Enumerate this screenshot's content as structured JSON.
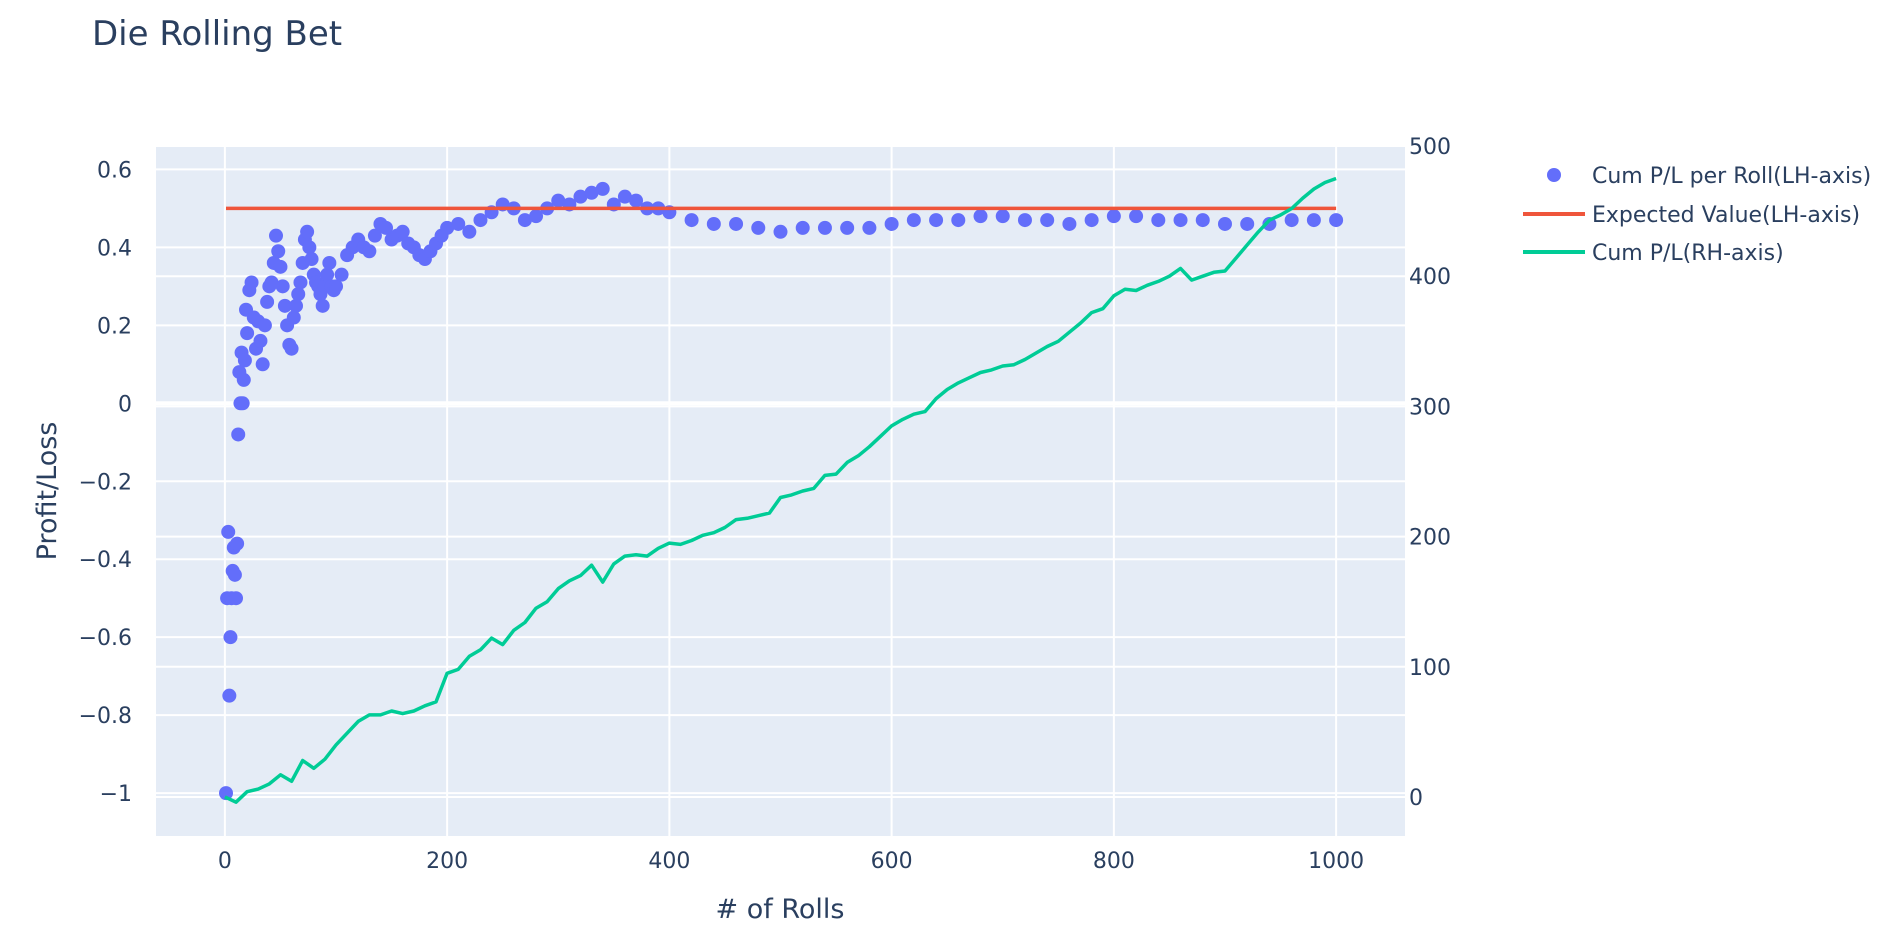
{
  "chart_data": {
    "type": "scatter",
    "title": "Die Rolling Bet",
    "xlabel": "# of Rolls",
    "ylabel": "Profit/Loss",
    "y2label": "",
    "xlim": [
      -62,
      1062
    ],
    "ylim": [
      -1.11,
      0.66
    ],
    "y2lim": [
      -30,
      500
    ],
    "x_ticks": [
      0,
      200,
      400,
      600,
      800,
      1000
    ],
    "x_tick_labels": [
      "0",
      "200",
      "400",
      "600",
      "800",
      "1000"
    ],
    "y_ticks": [
      0.6,
      0.4,
      0.2,
      0,
      -0.2,
      -0.4,
      -0.6,
      -0.8,
      -1
    ],
    "y_tick_labels": [
      "0.6",
      "0.4",
      "0.2",
      "0",
      "−0.2",
      "−0.4",
      "−0.6",
      "−0.8",
      "−1"
    ],
    "y2_ticks": [
      500,
      400,
      300,
      200,
      100,
      0
    ],
    "y2_tick_labels": [
      "500",
      "400",
      "300",
      "200",
      "100",
      "0"
    ],
    "grid": true,
    "legend_position": "top-right",
    "colors": {
      "plot_bg": "#e5ecf6",
      "text": "#2a3f5f",
      "markers": "#636efa",
      "expected": "#ef553b",
      "cumulative": "#00cc96"
    },
    "series": [
      {
        "name": "Cum P/L per Roll(LH-axis)",
        "kind": "markers",
        "axis": "left",
        "color": "#636efa",
        "x": [
          1,
          2,
          3,
          4,
          5,
          6,
          7,
          8,
          9,
          10,
          11,
          12,
          13,
          14,
          15,
          16,
          17,
          18,
          19,
          20,
          22,
          24,
          26,
          28,
          30,
          32,
          34,
          36,
          38,
          40,
          42,
          44,
          46,
          48,
          50,
          52,
          54,
          56,
          58,
          60,
          62,
          64,
          66,
          68,
          70,
          72,
          74,
          76,
          78,
          80,
          82,
          84,
          86,
          88,
          90,
          92,
          94,
          96,
          98,
          100,
          105,
          110,
          115,
          120,
          125,
          130,
          135,
          140,
          145,
          150,
          155,
          160,
          165,
          170,
          175,
          180,
          185,
          190,
          195,
          200,
          210,
          220,
          230,
          240,
          250,
          260,
          270,
          280,
          290,
          300,
          310,
          320,
          330,
          340,
          350,
          360,
          370,
          380,
          390,
          400,
          420,
          440,
          460,
          480,
          500,
          520,
          540,
          560,
          580,
          600,
          620,
          640,
          660,
          680,
          700,
          720,
          740,
          760,
          780,
          800,
          820,
          840,
          860,
          880,
          900,
          920,
          940,
          960,
          980,
          1000
        ],
        "y": [
          -1.0,
          -0.5,
          -0.33,
          -0.75,
          -0.6,
          -0.5,
          -0.43,
          -0.37,
          -0.44,
          -0.5,
          -0.36,
          -0.08,
          0.08,
          0.0,
          0.13,
          0.0,
          0.06,
          0.11,
          0.24,
          0.18,
          0.29,
          0.31,
          0.22,
          0.14,
          0.21,
          0.16,
          0.1,
          0.2,
          0.26,
          0.3,
          0.31,
          0.36,
          0.43,
          0.39,
          0.35,
          0.3,
          0.25,
          0.2,
          0.15,
          0.14,
          0.22,
          0.25,
          0.28,
          0.31,
          0.36,
          0.42,
          0.44,
          0.4,
          0.37,
          0.33,
          0.31,
          0.3,
          0.28,
          0.25,
          0.3,
          0.33,
          0.36,
          0.3,
          0.29,
          0.3,
          0.33,
          0.38,
          0.4,
          0.42,
          0.4,
          0.39,
          0.43,
          0.46,
          0.45,
          0.42,
          0.43,
          0.44,
          0.41,
          0.4,
          0.38,
          0.37,
          0.39,
          0.41,
          0.43,
          0.45,
          0.46,
          0.44,
          0.47,
          0.49,
          0.51,
          0.5,
          0.47,
          0.48,
          0.5,
          0.52,
          0.51,
          0.53,
          0.54,
          0.55,
          0.51,
          0.53,
          0.52,
          0.5,
          0.5,
          0.49,
          0.47,
          0.46,
          0.46,
          0.45,
          0.44,
          0.45,
          0.45,
          0.45,
          0.45,
          0.46,
          0.47,
          0.47,
          0.47,
          0.48,
          0.48,
          0.47,
          0.47,
          0.46,
          0.47,
          0.48,
          0.48,
          0.47,
          0.47,
          0.47,
          0.46,
          0.46,
          0.46,
          0.47,
          0.47,
          0.47
        ]
      },
      {
        "name": "Expected Value(LH-axis)",
        "kind": "line",
        "axis": "left",
        "color": "#ef553b",
        "x": [
          1,
          1000
        ],
        "y": [
          0.5,
          0.5
        ]
      },
      {
        "name": "Cum P/L(RH-axis)",
        "kind": "line",
        "axis": "right",
        "color": "#00cc96",
        "x": [
          0,
          10,
          20,
          30,
          40,
          50,
          60,
          70,
          80,
          90,
          100,
          110,
          120,
          130,
          140,
          150,
          160,
          170,
          180,
          190,
          200,
          210,
          220,
          230,
          240,
          250,
          260,
          270,
          280,
          290,
          300,
          310,
          320,
          330,
          340,
          350,
          360,
          370,
          380,
          390,
          400,
          410,
          420,
          430,
          440,
          450,
          460,
          470,
          480,
          490,
          500,
          510,
          520,
          530,
          540,
          550,
          560,
          570,
          580,
          590,
          600,
          610,
          620,
          630,
          640,
          650,
          660,
          670,
          680,
          690,
          700,
          710,
          720,
          730,
          740,
          750,
          760,
          770,
          780,
          790,
          800,
          810,
          820,
          830,
          840,
          850,
          860,
          870,
          880,
          890,
          900,
          910,
          920,
          930,
          940,
          950,
          960,
          970,
          980,
          990,
          1000
        ],
        "y": [
          0,
          -4,
          4,
          6,
          10,
          17,
          12,
          28,
          22,
          29,
          40,
          49,
          58,
          63,
          63,
          66,
          64,
          66,
          70,
          73,
          95,
          98,
          108,
          113,
          122,
          117,
          128,
          134,
          145,
          150,
          160,
          166,
          170,
          178,
          165,
          179,
          185,
          186,
          185,
          191,
          195,
          194,
          197,
          201,
          203,
          207,
          213,
          214,
          216,
          218,
          230,
          232,
          235,
          237,
          247,
          248,
          257,
          262,
          269,
          277,
          285,
          290,
          294,
          296,
          306,
          313,
          318,
          322,
          326,
          328,
          331,
          332,
          336,
          341,
          346,
          350,
          357,
          364,
          372,
          375,
          385,
          390,
          389,
          393,
          396,
          400,
          406,
          397,
          400,
          403,
          404,
          414,
          424,
          434,
          443,
          447,
          452,
          460,
          467,
          472,
          475
        ]
      }
    ]
  }
}
